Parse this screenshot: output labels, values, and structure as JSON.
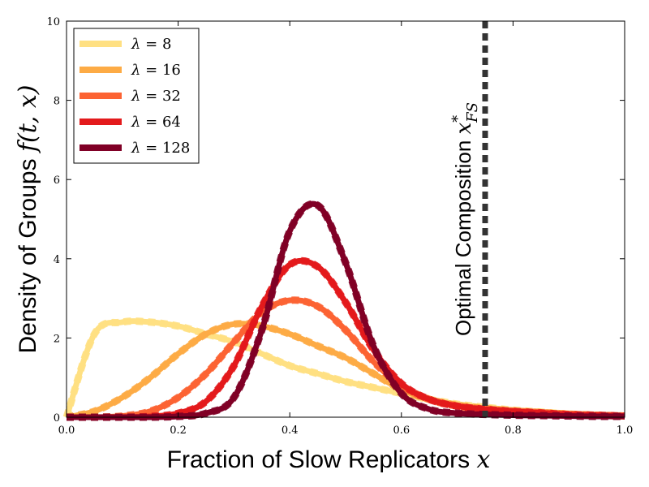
{
  "chart_data": {
    "type": "line",
    "title": "",
    "xlabel": "Fraction of Slow Replicators",
    "xlabel_var": "x",
    "ylabel": "Density of Groups",
    "ylabel_var": "f(t, x)",
    "xlim": [
      0.0,
      1.0
    ],
    "ylim": [
      0,
      10
    ],
    "xticks": [
      "0.0",
      "0.2",
      "0.4",
      "0.6",
      "0.8",
      "1.0"
    ],
    "yticks": [
      "0",
      "2",
      "4",
      "6",
      "8",
      "10"
    ],
    "grid": false,
    "legend_position": "top-left",
    "line_styles": "each series drawn as a solid line overlaid with a dashed line of the same color",
    "x": [
      0.0,
      0.05,
      0.1,
      0.15,
      0.2,
      0.25,
      0.3,
      0.35,
      0.4,
      0.45,
      0.5,
      0.55,
      0.6,
      0.65,
      0.7,
      0.75,
      0.8,
      0.85,
      0.9,
      0.95,
      1.0
    ],
    "series": [
      {
        "name": "λ = 8",
        "label_lambda": "λ",
        "label_value": "= 8",
        "color": "#ffe082",
        "values": [
          0.0,
          2.1,
          2.4,
          2.4,
          2.3,
          2.1,
          1.9,
          1.6,
          1.3,
          1.1,
          0.9,
          0.75,
          0.6,
          0.45,
          0.33,
          0.25,
          0.18,
          0.13,
          0.08,
          0.05,
          0.03
        ]
      },
      {
        "name": "λ = 16",
        "label_lambda": "λ",
        "label_value": "= 16",
        "color": "#fdab45",
        "values": [
          0.0,
          0.15,
          0.5,
          1.0,
          1.6,
          2.1,
          2.35,
          2.3,
          2.1,
          1.8,
          1.5,
          1.1,
          0.7,
          0.45,
          0.3,
          0.22,
          0.16,
          0.12,
          0.08,
          0.05,
          0.03
        ]
      },
      {
        "name": "λ = 32",
        "label_lambda": "λ",
        "label_value": "= 32",
        "color": "#fc6333",
        "values": [
          0.0,
          0.0,
          0.03,
          0.15,
          0.5,
          1.1,
          1.9,
          2.65,
          2.95,
          2.8,
          2.2,
          1.4,
          0.8,
          0.45,
          0.28,
          0.2,
          0.15,
          0.11,
          0.07,
          0.05,
          0.03
        ]
      },
      {
        "name": "λ = 64",
        "label_lambda": "λ",
        "label_value": "= 64",
        "color": "#e31a1c",
        "values": [
          0.0,
          0.0,
          0.0,
          0.02,
          0.1,
          0.4,
          1.3,
          2.8,
          3.85,
          3.8,
          2.9,
          1.7,
          0.85,
          0.45,
          0.28,
          0.2,
          0.15,
          0.11,
          0.07,
          0.05,
          0.03
        ]
      },
      {
        "name": "λ = 128",
        "label_lambda": "λ",
        "label_value": "= 128",
        "color": "#800026",
        "values": [
          0.0,
          0.0,
          0.0,
          0.0,
          0.02,
          0.1,
          0.5,
          2.2,
          4.7,
          5.35,
          3.9,
          1.8,
          0.6,
          0.2,
          0.1,
          0.07,
          0.05,
          0.04,
          0.03,
          0.02,
          0.02
        ]
      }
    ],
    "annotations": [
      {
        "text": "Optimal Composition",
        "var": "x",
        "var_sup": "*",
        "var_sub": "FS",
        "x": 0.75,
        "style": "vertical black dashed line",
        "color": "#333333"
      }
    ]
  }
}
